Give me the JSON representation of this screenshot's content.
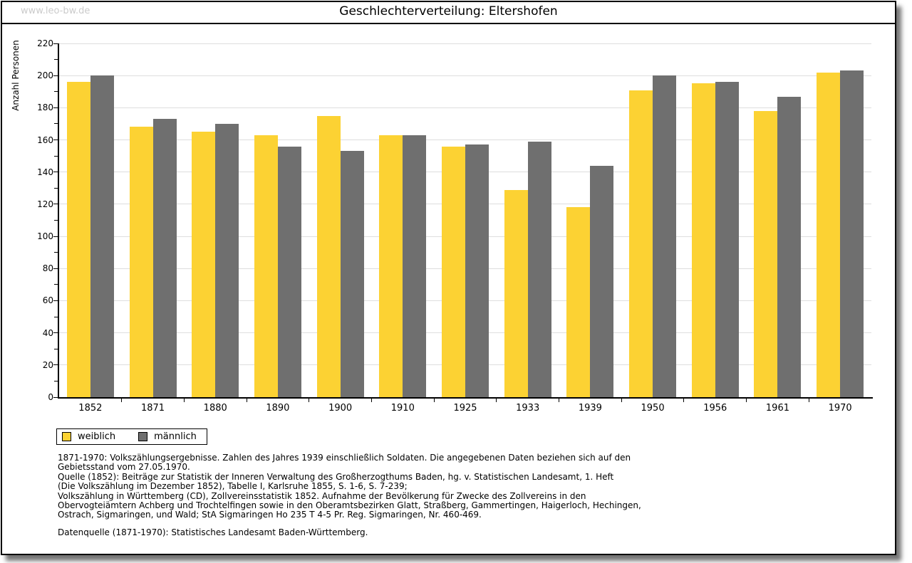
{
  "window": {
    "watermark": "www.leo-bw.de"
  },
  "title": "Geschlechterverteilung: Eltershofen",
  "chart_data": {
    "type": "bar",
    "title": "Geschlechterverteilung: Eltershofen",
    "xlabel": "",
    "ylabel": "Anzahl Personen",
    "ylim": [
      0,
      220
    ],
    "ytick_step": 20,
    "yminor_step": 10,
    "grid": true,
    "gridline_color": "#dedede",
    "legend_position": "bottom-left",
    "categories": [
      "1852",
      "1871",
      "1880",
      "1890",
      "1900",
      "1910",
      "1925",
      "1933",
      "1939",
      "1950",
      "1956",
      "1961",
      "1970"
    ],
    "series": [
      {
        "name": "weiblich",
        "color": "#FCD233",
        "values": [
          196,
          168,
          165,
          163,
          175,
          163,
          156,
          129,
          118,
          191,
          195,
          178,
          202
        ]
      },
      {
        "name": "männlich",
        "color": "#6F6F6F",
        "values": [
          200,
          173,
          170,
          156,
          153,
          163,
          157,
          159,
          144,
          200,
          196,
          187,
          203
        ]
      }
    ]
  },
  "notes": {
    "lines": [
      "1871-1970: Volkszählungsergebnisse. Zahlen des Jahres 1939 einschließlich Soldaten. Die angegebenen Daten beziehen sich auf den",
      "Gebietsstand vom 27.05.1970.",
      "Quelle (1852): Beiträge zur Statistik der Inneren Verwaltung des Großherzogthums Baden, hg. v. Statistischen Landesamt, 1. Heft",
      "(Die Volkszählung im Dezember 1852), Tabelle I, Karlsruhe 1855, S. 1-6, S. 7-239;",
      "Volkszählung in Württemberg (CD), Zollvereinsstatistik 1852. Aufnahme der Bevölkerung für Zwecke des Zollvereins in den",
      "Obervogteiämtern Achberg und Trochtelfingen sowie in den Oberamtsbezirken Glatt, Straßberg, Gammertingen, Haigerloch, Hechingen,",
      "Ostrach, Sigmaringen, und Wald; StA Sigmaringen Ho 235 T 4-5 Pr. Reg. Sigmaringen, Nr. 460-469."
    ],
    "datasource": "Datenquelle (1871-1970): Statistisches Landesamt Baden-Württemberg."
  }
}
